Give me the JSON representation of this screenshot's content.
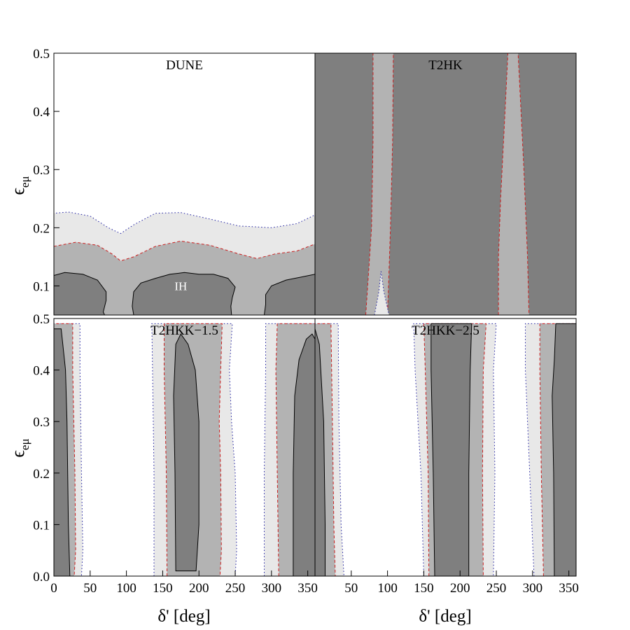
{
  "figure": {
    "colors": {
      "c99": "#7f7f7f",
      "c95": "#b3b3b3",
      "c90": "#e8e8e8",
      "line99": "#000000",
      "line95": "#cc2020",
      "line90": "#1c1ca0",
      "background": "#ffffff"
    },
    "x_axis_label": "δ' [deg]",
    "y_axis_label": "ϵeμ",
    "y_axis_label_parts": {
      "base": "ϵ",
      "sub": "eμ"
    }
  },
  "chart_data": [
    {
      "type": "contour",
      "title": "DUNE",
      "annotation": "IH",
      "annotation_pos": [
        175,
        0.1
      ],
      "xlim": [
        0,
        360
      ],
      "ylim": [
        0.05,
        0.5
      ],
      "xticks": [],
      "yticks": [
        0.1,
        0.2,
        0.3,
        0.4,
        0.5
      ],
      "xticklabels": [],
      "yticklabels": [
        "0.1",
        "0.2",
        "0.3",
        "0.4",
        "0.5"
      ],
      "regions": [
        {
          "level": "c90",
          "points": [
            [
              0,
              0.05
            ],
            [
              0,
              0.225
            ],
            [
              20,
              0.227
            ],
            [
              50,
              0.22
            ],
            [
              75,
              0.2
            ],
            [
              92,
              0.19
            ],
            [
              110,
              0.205
            ],
            [
              140,
              0.225
            ],
            [
              175,
              0.226
            ],
            [
              215,
              0.215
            ],
            [
              255,
              0.203
            ],
            [
              300,
              0.2
            ],
            [
              335,
              0.207
            ],
            [
              360,
              0.222
            ],
            [
              360,
              0.05
            ]
          ]
        },
        {
          "level": "c95",
          "points": [
            [
              0,
              0.05
            ],
            [
              0,
              0.168
            ],
            [
              30,
              0.175
            ],
            [
              60,
              0.17
            ],
            [
              80,
              0.155
            ],
            [
              92,
              0.143
            ],
            [
              110,
              0.15
            ],
            [
              140,
              0.168
            ],
            [
              175,
              0.177
            ],
            [
              215,
              0.17
            ],
            [
              255,
              0.155
            ],
            [
              280,
              0.147
            ],
            [
              305,
              0.155
            ],
            [
              335,
              0.16
            ],
            [
              360,
              0.172
            ],
            [
              360,
              0.05
            ]
          ]
        },
        {
          "level": "c99",
          "points": [
            [
              0,
              0.05
            ],
            [
              0,
              0.118
            ],
            [
              15,
              0.123
            ],
            [
              40,
              0.12
            ],
            [
              60,
              0.11
            ],
            [
              72,
              0.09
            ],
            [
              72,
              0.075
            ],
            [
              68,
              0.055
            ],
            [
              70,
              0.05
            ]
          ]
        },
        {
          "level": "c99",
          "points": [
            [
              110,
              0.05
            ],
            [
              108,
              0.065
            ],
            [
              110,
              0.09
            ],
            [
              120,
              0.105
            ],
            [
              140,
              0.113
            ],
            [
              160,
              0.12
            ],
            [
              180,
              0.123
            ],
            [
              200,
              0.12
            ],
            [
              220,
              0.12
            ],
            [
              240,
              0.113
            ],
            [
              250,
              0.098
            ],
            [
              246,
              0.08
            ],
            [
              244,
              0.065
            ],
            [
              245,
              0.05
            ]
          ]
        },
        {
          "level": "c99",
          "points": [
            [
              290,
              0.05
            ],
            [
              292,
              0.068
            ],
            [
              292,
              0.085
            ],
            [
              300,
              0.1
            ],
            [
              320,
              0.11
            ],
            [
              340,
              0.115
            ],
            [
              360,
              0.12
            ],
            [
              360,
              0.05
            ]
          ]
        }
      ]
    },
    {
      "type": "contour",
      "title": "T2HK",
      "xlim": [
        0,
        360
      ],
      "ylim": [
        0.05,
        0.5
      ],
      "xticks": [],
      "yticks": [],
      "xticklabels": [],
      "yticklabels": [],
      "regions": [
        {
          "level": "c99",
          "points": [
            [
              0,
              0.05
            ],
            [
              0,
              0.5
            ],
            [
              360,
              0.5
            ],
            [
              360,
              0.05
            ]
          ]
        },
        {
          "level": "c95",
          "points": [
            [
              70,
              0.05
            ],
            [
              78,
              0.2
            ],
            [
              80,
              0.35
            ],
            [
              80,
              0.5
            ],
            [
              108,
              0.5
            ],
            [
              107,
              0.35
            ],
            [
              104,
              0.2
            ],
            [
              100,
              0.05
            ]
          ]
        },
        {
          "level": "c90",
          "points": [
            [
              82,
              0.05
            ],
            [
              88,
              0.09
            ],
            [
              91,
              0.125
            ],
            [
              95,
              0.09
            ],
            [
              102,
              0.05
            ]
          ]
        },
        {
          "level": "c95",
          "points": [
            [
              253,
              0.05
            ],
            [
              253,
              0.15
            ],
            [
              256,
              0.25
            ],
            [
              262,
              0.4
            ],
            [
              266,
              0.5
            ],
            [
              280,
              0.5
            ],
            [
              284,
              0.4
            ],
            [
              288,
              0.3
            ],
            [
              293,
              0.15
            ],
            [
              295,
              0.05
            ]
          ]
        }
      ]
    },
    {
      "type": "contour",
      "title": "T2HKK−1.5",
      "xlim": [
        0,
        360
      ],
      "ylim": [
        0,
        0.5
      ],
      "xticks": [
        0,
        50,
        100,
        150,
        200,
        250,
        300,
        350
      ],
      "xticklabels": [
        "0",
        "50",
        "100",
        "150",
        "200",
        "250",
        "300",
        "350"
      ],
      "yticks": [
        0,
        0.1,
        0.2,
        0.3,
        0.4,
        0.5
      ],
      "yticklabels": [
        "0.0",
        "0.1",
        "0.2",
        "0.3",
        "0.4",
        "0.5"
      ],
      "regions": [
        {
          "level": "c90",
          "points": [
            [
              0,
              0
            ],
            [
              0,
              0.49
            ],
            [
              36,
              0.49
            ],
            [
              36,
              0.4
            ],
            [
              38,
              0.2
            ],
            [
              40,
              0.05
            ],
            [
              38,
              0
            ]
          ]
        },
        {
          "level": "c95",
          "points": [
            [
              0,
              0
            ],
            [
              0,
              0.49
            ],
            [
              26,
              0.49
            ],
            [
              26,
              0.4
            ],
            [
              29,
              0.2
            ],
            [
              30,
              0.05
            ],
            [
              28,
              0
            ]
          ]
        },
        {
          "level": "c99",
          "points": [
            [
              0,
              0
            ],
            [
              0,
              0.48
            ],
            [
              10,
              0.48
            ],
            [
              16,
              0.4
            ],
            [
              18,
              0.3
            ],
            [
              20,
              0.1
            ],
            [
              22,
              0
            ]
          ]
        },
        {
          "level": "c90",
          "points": [
            [
              138,
              0
            ],
            [
              138,
              0.2
            ],
            [
              136,
              0.4
            ],
            [
              135,
              0.49
            ],
            [
              246,
              0.49
            ],
            [
              242,
              0.4
            ],
            [
              245,
              0.3
            ],
            [
              250,
              0.2
            ],
            [
              252,
              0.05
            ],
            [
              250,
              0
            ]
          ]
        },
        {
          "level": "c95",
          "points": [
            [
              156,
              0
            ],
            [
              155,
              0.2
            ],
            [
              152,
              0.4
            ],
            [
              152,
              0.49
            ],
            [
              232,
              0.49
            ],
            [
              230,
              0.4
            ],
            [
              228,
              0.3
            ],
            [
              230,
              0.2
            ],
            [
              231,
              0.05
            ],
            [
              229,
              0
            ]
          ]
        },
        {
          "level": "c99",
          "points": [
            [
              168,
              0.01
            ],
            [
              167,
              0.2
            ],
            [
              165,
              0.35
            ],
            [
              168,
              0.45
            ],
            [
              175,
              0.47
            ],
            [
              185,
              0.45
            ],
            [
              195,
              0.4
            ],
            [
              200,
              0.3
            ],
            [
              200,
              0.1
            ],
            [
              196,
              0.01
            ]
          ]
        },
        {
          "level": "c90",
          "points": [
            [
              290,
              0
            ],
            [
              290,
              0.2
            ],
            [
              292,
              0.4
            ],
            [
              292,
              0.49
            ],
            [
              360,
              0.49
            ],
            [
              360,
              0
            ]
          ]
        },
        {
          "level": "c95",
          "points": [
            [
              310,
              0
            ],
            [
              308,
              0.2
            ],
            [
              306,
              0.4
            ],
            [
              308,
              0.49
            ],
            [
              360,
              0.49
            ],
            [
              360,
              0
            ]
          ]
        },
        {
          "level": "c99",
          "points": [
            [
              330,
              0
            ],
            [
              330,
              0.2
            ],
            [
              332,
              0.35
            ],
            [
              338,
              0.42
            ],
            [
              348,
              0.46
            ],
            [
              356,
              0.47
            ],
            [
              360,
              0.46
            ],
            [
              360,
              0
            ]
          ]
        }
      ]
    },
    {
      "type": "contour",
      "title": "T2HKK−2.5",
      "xlim": [
        0,
        360
      ],
      "ylim": [
        0,
        0.5
      ],
      "xticks": [
        50,
        100,
        150,
        200,
        250,
        300,
        350
      ],
      "xticklabels": [
        "50",
        "100",
        "150",
        "200",
        "250",
        "300",
        "350"
      ],
      "yticks": [],
      "yticklabels": [],
      "regions": [
        {
          "level": "c90",
          "points": [
            [
              0,
              0
            ],
            [
              0,
              0.49
            ],
            [
              32,
              0.49
            ],
            [
              33,
              0.3
            ],
            [
              36,
              0.1
            ],
            [
              40,
              0
            ]
          ]
        },
        {
          "level": "c95",
          "points": [
            [
              0,
              0
            ],
            [
              0,
              0.49
            ],
            [
              22,
              0.49
            ],
            [
              24,
              0.3
            ],
            [
              26,
              0.1
            ],
            [
              28,
              0
            ]
          ]
        },
        {
          "level": "c99",
          "points": [
            [
              0,
              0
            ],
            [
              0,
              0.48
            ],
            [
              6,
              0.45
            ],
            [
              12,
              0.3
            ],
            [
              14,
              0.1
            ],
            [
              14,
              0
            ]
          ]
        },
        {
          "level": "c90",
          "points": [
            [
              150,
              0
            ],
            [
              146,
              0.2
            ],
            [
              138,
              0.4
            ],
            [
              136,
              0.49
            ],
            [
              250,
              0.49
            ],
            [
              246,
              0.4
            ],
            [
              248,
              0.2
            ],
            [
              246,
              0
            ]
          ]
        },
        {
          "level": "c95",
          "points": [
            [
              157,
              0
            ],
            [
              156,
              0.2
            ],
            [
              152,
              0.4
            ],
            [
              150,
              0.49
            ],
            [
              236,
              0.49
            ],
            [
              232,
              0.4
            ],
            [
              231,
              0.2
            ],
            [
              232,
              0
            ]
          ]
        },
        {
          "level": "c99",
          "points": [
            [
              165,
              0
            ],
            [
              163,
              0.2
            ],
            [
              160,
              0.4
            ],
            [
              160,
              0.49
            ],
            [
              216,
              0.49
            ],
            [
              214,
              0.4
            ],
            [
              212,
              0.2
            ],
            [
              212,
              0
            ]
          ]
        },
        {
          "level": "c90",
          "points": [
            [
              302,
              0
            ],
            [
              296,
              0.2
            ],
            [
              290,
              0.4
            ],
            [
              290,
              0.49
            ],
            [
              360,
              0.49
            ],
            [
              360,
              0
            ]
          ]
        },
        {
          "level": "c95",
          "points": [
            [
              315,
              0
            ],
            [
              312,
              0.2
            ],
            [
              310,
              0.4
            ],
            [
              310,
              0.49
            ],
            [
              360,
              0.49
            ],
            [
              360,
              0
            ]
          ]
        },
        {
          "level": "c99",
          "points": [
            [
              330,
              0
            ],
            [
              329,
              0.2
            ],
            [
              327,
              0.35
            ],
            [
              330,
              0.42
            ],
            [
              332,
              0.49
            ],
            [
              360,
              0.49
            ],
            [
              360,
              0
            ]
          ]
        }
      ]
    }
  ]
}
